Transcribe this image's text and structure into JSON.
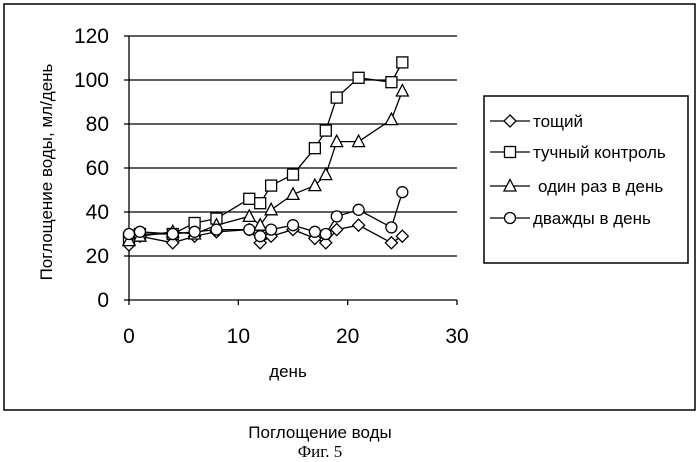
{
  "chart_data": {
    "type": "line",
    "xlabel": "день",
    "ylabel": "Поглощение воды, мл/день",
    "xlim": [
      0,
      30
    ],
    "ylim": [
      0,
      120
    ],
    "x_ticks": [
      0,
      10,
      20,
      30
    ],
    "y_ticks": [
      0,
      20,
      40,
      60,
      80,
      100,
      120
    ],
    "grid": "horizontal",
    "legend_position": "right",
    "series": [
      {
        "name": "тощий",
        "marker": "diamond",
        "x": [
          0,
          1,
          4,
          6,
          8,
          11,
          12,
          13,
          15,
          17,
          18,
          19,
          21,
          24,
          25
        ],
        "y": [
          25,
          29,
          26,
          29,
          31,
          32,
          26,
          29,
          32,
          28,
          26,
          32,
          34,
          26,
          29
        ]
      },
      {
        "name": "тучный контроль",
        "marker": "square",
        "x": [
          0,
          1,
          4,
          6,
          8,
          11,
          12,
          13,
          15,
          17,
          18,
          19,
          21,
          24,
          25
        ],
        "y": [
          28,
          30,
          30,
          35,
          37,
          46,
          44,
          52,
          57,
          69,
          77,
          92,
          101,
          99,
          108
        ]
      },
      {
        "name": "один раз в день",
        "marker": "triangle",
        "x": [
          0,
          1,
          4,
          6,
          8,
          11,
          12,
          13,
          15,
          17,
          18,
          19,
          21,
          24,
          25
        ],
        "y": [
          27,
          29,
          31,
          30,
          34,
          38,
          34,
          41,
          48,
          52,
          57,
          72,
          72,
          82,
          95
        ]
      },
      {
        "name": "дважды в день",
        "marker": "circle",
        "x": [
          0,
          1,
          4,
          6,
          8,
          11,
          12,
          13,
          15,
          17,
          18,
          19,
          21,
          24,
          25
        ],
        "y": [
          30,
          31,
          30,
          31,
          32,
          32,
          29,
          32,
          34,
          31,
          30,
          38,
          41,
          33,
          49
        ]
      }
    ]
  },
  "caption": {
    "title": "Поглощение воды",
    "figure": "Фиг. 5"
  }
}
